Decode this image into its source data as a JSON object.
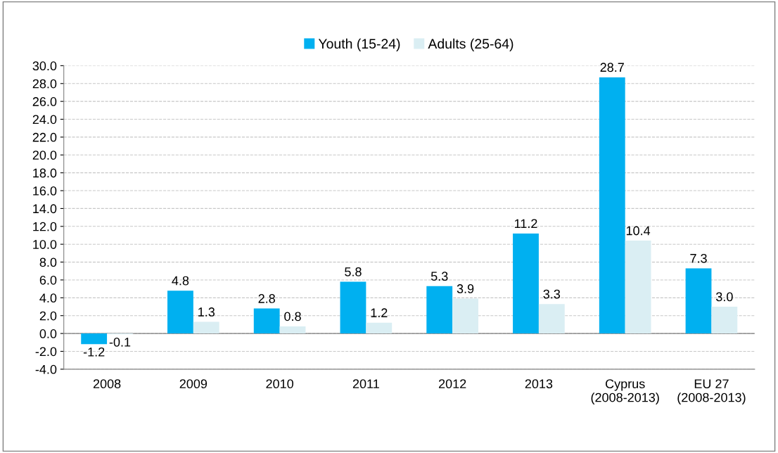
{
  "chart_data": {
    "type": "bar",
    "categories": [
      "2008",
      "2009",
      "2010",
      "2011",
      "2012",
      "2013",
      "Cyprus\n(2008-2013)",
      "EU 27\n(2008-2013)"
    ],
    "series": [
      {
        "name": "Youth (15-24)",
        "color": "#00b0f0",
        "values": [
          -1.2,
          4.8,
          2.8,
          5.8,
          5.3,
          11.2,
          28.7,
          7.3
        ],
        "value_labels": [
          "-1.2",
          "4.8",
          "2.8",
          "5.8",
          "5.3",
          "11.2",
          "28.7",
          "7.3"
        ]
      },
      {
        "name": "Adults (25-64)",
        "color": "#daeef3",
        "values": [
          -0.1,
          1.3,
          0.8,
          1.2,
          3.9,
          3.3,
          10.4,
          3.0
        ],
        "value_labels": [
          "-0.1",
          "1.3",
          "0.8",
          "1.2",
          "3.9",
          "3.3",
          "10.4",
          "3.0"
        ]
      }
    ],
    "ylim": [
      -4,
      30
    ],
    "yticks": [
      {
        "value": -4,
        "label": "-4.0"
      },
      {
        "value": -2,
        "label": "-2.0"
      },
      {
        "value": 0,
        "label": "0.0"
      },
      {
        "value": 2,
        "label": "2.0"
      },
      {
        "value": 4,
        "label": "4.0"
      },
      {
        "value": 6,
        "label": "6.0"
      },
      {
        "value": 8,
        "label": "8.0"
      },
      {
        "value": 10,
        "label": "10.0"
      },
      {
        "value": 12,
        "label": "12.0"
      },
      {
        "value": 14,
        "label": "14.0"
      },
      {
        "value": 16,
        "label": "16.0"
      },
      {
        "value": 18,
        "label": "18.0"
      },
      {
        "value": 20,
        "label": "20.0"
      },
      {
        "value": 22,
        "label": "22.0"
      },
      {
        "value": 24,
        "label": "24.0"
      },
      {
        "value": 26,
        "label": "26.0"
      },
      {
        "value": 28,
        "label": "28.0"
      },
      {
        "value": 30,
        "label": "30.0"
      }
    ],
    "grid": "y",
    "legend": "top"
  }
}
